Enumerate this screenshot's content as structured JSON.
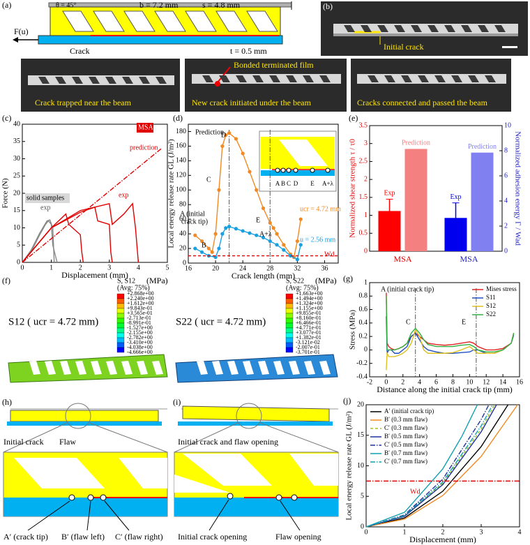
{
  "panels": {
    "a": {
      "label": "(a)",
      "theta": "θ = 45°",
      "b": "b = 7.2 mm",
      "s": "s = 4.8 mm",
      "force": "F(u)",
      "crack": "Crack",
      "t": "t = 0.5 mm"
    },
    "b": {
      "label": "(b)",
      "initial_crack": "Initial crack"
    },
    "photos": {
      "trapped": "Crack trapped near the beam",
      "film": "Bonded terminated film",
      "initiated": "New crack initiated under the beam",
      "connected": "Cracks connected and passed the beam"
    },
    "f": {
      "label": "(f)",
      "left": {
        "title": "S, S12",
        "avg": "(Avg: 75%)",
        "unit": "(MPa)",
        "caption": "S12 ( ucr = 4.72 mm)",
        "levels": [
          "+2.868e+00",
          "+2.240e+00",
          "+1.612e+00",
          "+9.843e-01",
          "+3.565e-01",
          "-2.713e-01",
          "-8.991e-01",
          "-1.527e+00",
          "-2.155e+00",
          "-2.782e+00",
          "-3.410e+00",
          "-4.038e+00",
          "-4.666e+00"
        ]
      },
      "right": {
        "title": "S, S22",
        "avg": "(Avg: 75%)",
        "unit": "(MPa)",
        "caption": "S22 ( ucr = 4.72 mm)",
        "levels": [
          "+1.663e+00",
          "+1.494e+00",
          "+1.324e+00",
          "+1.155e+00",
          "+9.855e-01",
          "+8.160e-01",
          "+6.466e-01",
          "+4.771e-01",
          "+3.077e-01",
          "+1.382e-01",
          "-3.121e-02",
          "-2.007e-01",
          "-3.701e-01"
        ]
      }
    },
    "h": {
      "label": "(h)",
      "initial_crack": "Initial crack",
      "flaw": "Flaw",
      "a": "A′ (crack tip)",
      "b": "B′ (flaw left)",
      "c": "C′ (flaw right)"
    },
    "i": {
      "label": "(i)",
      "top": "Initial crack and flaw opening",
      "crack_opening": "Initial crack opening",
      "flaw_opening": "Flaw opening"
    }
  },
  "chart_data": [
    {
      "type": "line",
      "panel_label": "(c)",
      "xlabel": "Displacement (mm)",
      "ylabel": "Force (N)",
      "xlim": [
        0,
        5
      ],
      "xticks": [
        0,
        1,
        2,
        3,
        4,
        5
      ],
      "ylim": [
        0,
        40
      ],
      "yticks": [
        0,
        5,
        10,
        15,
        20,
        25,
        30,
        35,
        40
      ],
      "series": [
        {
          "color": "#888888",
          "x": [
            0,
            0.3,
            0.6,
            0.8,
            0.9,
            1.0,
            1.05,
            1.2
          ],
          "values": [
            0,
            3,
            8,
            11,
            12,
            11,
            5,
            0
          ]
        },
        {
          "color": "#888888",
          "x": [
            0,
            0.3,
            0.6,
            0.85,
            0.95,
            1.05,
            1.1
          ],
          "values": [
            0,
            3.5,
            8.5,
            12,
            12.3,
            10,
            0
          ]
        },
        {
          "color": "#e00000",
          "x": [
            0,
            1,
            1.5,
            1.6,
            2.0,
            2.05,
            2.1
          ],
          "values": [
            0,
            10,
            14,
            11,
            8,
            3,
            0
          ]
        },
        {
          "color": "#e00000",
          "x": [
            0,
            1,
            2,
            2.5,
            2.6,
            3.0,
            3.05,
            3.1
          ],
          "values": [
            0,
            10,
            14.5,
            16,
            12,
            11,
            3,
            0
          ]
        },
        {
          "color": "#e00000",
          "x": [
            0,
            1,
            2,
            2.5,
            3.0,
            3.1,
            3.5,
            3.8,
            3.9,
            4.0
          ],
          "values": [
            0,
            10,
            15,
            16,
            17,
            11,
            14,
            17,
            10,
            0
          ]
        },
        {
          "color": "#e00000",
          "dash": "dash-dot",
          "x": [
            0,
            4.8
          ],
          "values": [
            0,
            33
          ]
        }
      ],
      "annotations": [
        "MSA",
        "prediction",
        "exp",
        "solid samples",
        "exp"
      ]
    },
    {
      "type": "line",
      "panel_label": "(d)",
      "xlabel": "Crack length (mm)",
      "ylabel": "Local energy release rate GL (J/m²)",
      "xlim": [
        16,
        38
      ],
      "xticks": [
        16,
        20,
        24,
        28,
        32,
        36
      ],
      "ylim": [
        0,
        190
      ],
      "yticks": [
        0,
        20,
        40,
        60,
        80,
        100,
        120,
        140,
        160,
        180
      ],
      "vlines": [
        22,
        28
      ],
      "series": [
        {
          "name": "ucr = 4.72 mm",
          "color": "#f08a24",
          "marker": "circle",
          "x": [
            17,
            18,
            19,
            19.5,
            20,
            20.5,
            21,
            21.5,
            22,
            23,
            24,
            25,
            26,
            27,
            28,
            28.5,
            29,
            30,
            31,
            31.5,
            32,
            32.5
          ],
          "values": [
            38,
            30,
            20,
            15,
            40,
            100,
            160,
            175,
            178,
            170,
            150,
            125,
            100,
            75,
            55,
            48,
            40,
            25,
            12,
            8,
            30,
            60
          ]
        },
        {
          "name": "u = 2.56 mm",
          "color": "#1aa0e0",
          "marker": "circle",
          "x": [
            17,
            18,
            19,
            20,
            20.5,
            21,
            21.5,
            22,
            23,
            24,
            25,
            26,
            27,
            28,
            29,
            30,
            31,
            32,
            32.5
          ],
          "values": [
            20,
            15,
            10,
            8,
            20,
            40,
            48,
            50,
            47,
            44,
            41,
            38,
            35,
            30,
            25,
            18,
            10,
            5,
            25
          ]
        },
        {
          "color": "#e00000",
          "dash": "dash",
          "x": [
            16,
            38
          ],
          "values": [
            10,
            10
          ]
        }
      ],
      "annotations": [
        "Prediction",
        "A (initial",
        "crack tip)",
        "B",
        "C",
        "D",
        "E",
        "A+λ",
        "Wd"
      ],
      "inset_labels": [
        "A",
        "B",
        "C",
        "D",
        "E",
        "A+λ"
      ]
    },
    {
      "type": "bar",
      "panel_label": "(e)",
      "ylabel": "Normalized shear strength τ / τ0",
      "y2label": "Normalized adhesion energy Γ / Wad",
      "ylabel_color": "#e00000",
      "y2label_color": "#2020c0",
      "categories": [
        "MSA",
        "MSA"
      ],
      "category_colors": [
        "#e00000",
        "#2020c0"
      ],
      "ylim": [
        0,
        3.5
      ],
      "yticks": [
        0,
        0.5,
        1,
        1.5,
        2,
        2.5,
        3,
        3.5
      ],
      "y2lim": [
        0,
        10
      ],
      "y2ticks": [
        0,
        2,
        4,
        6,
        8,
        10
      ],
      "series": [
        {
          "name": "Exp",
          "color": "#ff0000",
          "values": [
            1.12,
            null
          ],
          "errors": [
            0.33,
            null
          ]
        },
        {
          "name": "Prediction",
          "color": "#f58080",
          "values": [
            2.85,
            null
          ]
        },
        {
          "name": "Exp",
          "color": "#0000ee",
          "axis": "y2",
          "values": [
            null,
            2.65
          ],
          "errors": [
            null,
            1.2
          ]
        },
        {
          "name": "Prediction",
          "color": "#8080f0",
          "axis": "y2",
          "values": [
            null,
            7.85
          ]
        }
      ]
    },
    {
      "type": "line",
      "panel_label": "(g)",
      "xlabel": "Distance along the initial crack tip (mm)",
      "ylabel": "Stress (MPa)",
      "xlim": [
        -2,
        16
      ],
      "xticks": [
        -2,
        0,
        2,
        4,
        6,
        8,
        10,
        12,
        14,
        16
      ],
      "ylim": [
        -0.4,
        1.0
      ],
      "yticks": [
        -0.4,
        -0.2,
        0,
        0.2,
        0.4,
        0.6,
        0.8,
        1.0
      ],
      "vlines": [
        3.5,
        10.8
      ],
      "legend": "upper right",
      "series": [
        {
          "name": "Mises stress",
          "color": "#e02020",
          "x": [
            0,
            0.1,
            0.3,
            0.6,
            1,
            1.5,
            2,
            2.5,
            3,
            3.5,
            4,
            4.5,
            5,
            6,
            7,
            8,
            9,
            10,
            10.5,
            11,
            12,
            13,
            14,
            15,
            15.3
          ],
          "values": [
            0.85,
            0.1,
            0.05,
            0.02,
            0,
            0.02,
            0.05,
            0.1,
            0.2,
            0.25,
            0.2,
            0.15,
            0.1,
            0.08,
            0.07,
            0.08,
            0.1,
            0.12,
            0.1,
            0.05,
            0,
            0,
            0.02,
            0.1,
            0.25
          ]
        },
        {
          "name": "S11",
          "color": "#2050c0",
          "x": [
            0,
            0.1,
            0.3,
            0.6,
            1,
            1.5,
            2,
            2.5,
            3,
            3.5,
            4,
            4.5,
            5,
            6,
            7,
            8,
            9,
            10,
            10.5,
            11,
            12,
            13,
            14,
            15,
            15.3
          ],
          "values": [
            0.5,
            -0.05,
            0,
            0,
            -0.05,
            -0.05,
            0,
            0.05,
            0.2,
            0.25,
            0.15,
            0.05,
            0,
            -0.03,
            -0.05,
            -0.05,
            -0.04,
            -0.03,
            0,
            0,
            -0.05,
            -0.05,
            0,
            0.1,
            0.22
          ]
        },
        {
          "name": "S12",
          "color": "#e0c020",
          "x": [
            0,
            0.1,
            0.3,
            0.6,
            1,
            1.5,
            2,
            2.5,
            3,
            3.5,
            4,
            4.5,
            5,
            6,
            7,
            8,
            9,
            10,
            10.5,
            11,
            12,
            13,
            14,
            15,
            15.3
          ],
          "values": [
            -0.3,
            -0.05,
            -0.1,
            -0.1,
            -0.1,
            -0.08,
            -0.05,
            0,
            0.1,
            0.3,
            0.2,
            0,
            -0.05,
            -0.05,
            -0.05,
            -0.04,
            0,
            0.05,
            0,
            -0.05,
            -0.05,
            -0.05,
            0,
            0.1,
            0.25
          ]
        },
        {
          "name": "S22",
          "color": "#30b040",
          "x": [
            0,
            0.1,
            0.3,
            0.6,
            1,
            1.5,
            2,
            2.5,
            3,
            3.5,
            4,
            4.5,
            5,
            6,
            7,
            8,
            9,
            10,
            10.5,
            11,
            12,
            13,
            14,
            15,
            15.3
          ],
          "values": [
            0.8,
            0,
            0,
            0,
            0,
            0.02,
            0.05,
            0.1,
            0.25,
            0.32,
            0.25,
            0.15,
            0.08,
            0.05,
            0.05,
            0.05,
            0.07,
            0.08,
            0.05,
            0,
            -0.03,
            -0.03,
            0,
            0.1,
            0.25
          ]
        }
      ],
      "annotations": [
        "A (initial crack tip)",
        "C",
        "E"
      ]
    },
    {
      "type": "line",
      "panel_label": "(j)",
      "xlabel": "Displacement (mm)",
      "ylabel": "Local energy release rate GL (J/m²)",
      "xlim": [
        0,
        4
      ],
      "xticks": [
        0,
        1,
        2,
        3,
        4
      ],
      "ylim": [
        0,
        20
      ],
      "yticks": [
        0,
        5,
        10,
        15,
        20
      ],
      "legend": "upper left",
      "series": [
        {
          "name": "A′ (initial crack tip)",
          "color": "#000000",
          "x": [
            0,
            1,
            2,
            3,
            3.7
          ],
          "values": [
            0,
            1.46,
            5.84,
            13.15,
            20
          ]
        },
        {
          "name": "B′ (0.3 mm flaw)",
          "color": "#f08a24",
          "x": [
            0,
            1,
            2,
            3,
            3.95
          ],
          "values": [
            0,
            1.28,
            5.13,
            11.54,
            20
          ]
        },
        {
          "name": "C′ (0.3 mm flaw)",
          "color": "#a0c020",
          "dash": "dash",
          "x": [
            0,
            1,
            2,
            3,
            3.35
          ],
          "values": [
            0,
            1.78,
            7.13,
            16.04,
            20
          ]
        },
        {
          "name": "B′ (0.5 mm flaw)",
          "color": "#2030a0",
          "x": [
            0,
            1,
            2,
            3,
            3.4
          ],
          "values": [
            0,
            1.73,
            6.92,
            15.57,
            20
          ]
        },
        {
          "name": "C′ (0.5 mm flaw)",
          "color": "#2030a0",
          "dash": "dash-dot",
          "x": [
            0,
            1,
            2,
            3,
            3.2
          ],
          "values": [
            0,
            1.95,
            7.81,
            17.58,
            20
          ]
        },
        {
          "name": "B′ (0.7 mm flaw)",
          "color": "#10a0b0",
          "x": [
            0,
            1,
            2,
            2.5,
            2.9
          ],
          "values": [
            0,
            2.38,
            9.51,
            14.86,
            20
          ]
        },
        {
          "name": "C′ (0.7 mm flaw)",
          "color": "#10a0b0",
          "dash": "dash-dot",
          "x": [
            0,
            1,
            2,
            3,
            3.3
          ],
          "values": [
            0,
            1.84,
            7.35,
            16.53,
            20
          ]
        },
        {
          "color": "#e00000",
          "dash": "dash-dot",
          "x": [
            0,
            4
          ],
          "values": [
            7.5,
            7.5
          ]
        }
      ],
      "annotations": [
        "Wd"
      ]
    }
  ]
}
